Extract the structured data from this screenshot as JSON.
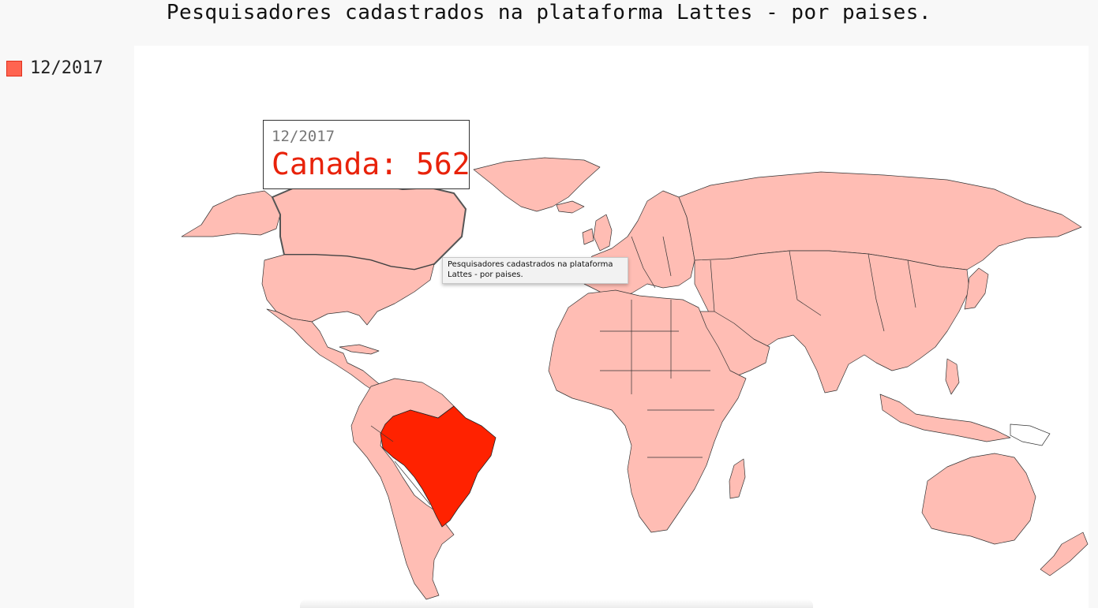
{
  "title": "Pesquisadores cadastrados na plataforma Lattes - por paises.",
  "legend": {
    "label": "12/2017",
    "color": "#ff6450"
  },
  "tooltip": {
    "date": "12/2017",
    "country": "Canada",
    "value": 562,
    "text": "Canada: 562"
  },
  "native_tooltip": {
    "text": "Pesquisadores cadastrados na plataforma Lattes - por paises."
  },
  "map": {
    "base_color": "#ffbdb4",
    "max_color": "#ff2200",
    "highlighted_country": "Brazil",
    "hovered_country": "Canada"
  }
}
